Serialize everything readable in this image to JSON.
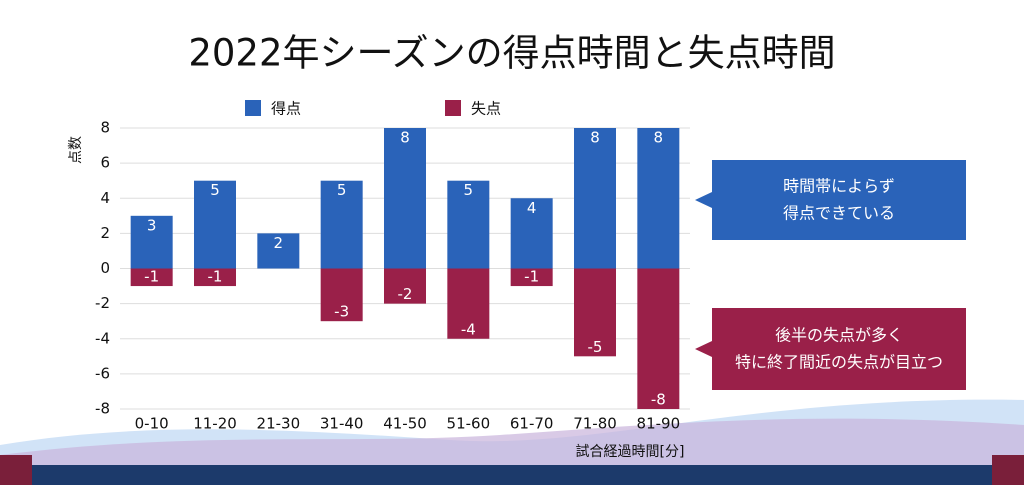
{
  "chart_data": {
    "type": "bar",
    "title": "2022年シーズンの得点時間と失点時間",
    "xlabel": "試合経過時間[分]",
    "ylabel": "点数",
    "categories": [
      "0-10",
      "11-20",
      "21-30",
      "31-40",
      "41-50",
      "51-60",
      "61-70",
      "71-80",
      "81-90"
    ],
    "series": [
      {
        "name": "得点",
        "color": "#2a63b9",
        "values": [
          3,
          5,
          2,
          5,
          8,
          5,
          4,
          8,
          8
        ]
      },
      {
        "name": "失点",
        "color": "#9a2049",
        "values": [
          -1,
          -1,
          null,
          -3,
          -2,
          -4,
          -1,
          -5,
          -8
        ]
      }
    ],
    "ylim": [
      -8,
      8
    ],
    "yticks": [
      -8,
      -6,
      -4,
      -2,
      0,
      2,
      4,
      6,
      8
    ],
    "grid": true,
    "legend": "top",
    "annotations": [
      {
        "lines": [
          "時間帯によらず",
          "得点できている"
        ],
        "color": "#2a63b9"
      },
      {
        "lines": [
          "後半の失点が多く",
          "特に終了間近の失点が目立つ"
        ],
        "color": "#9a2049"
      }
    ]
  }
}
